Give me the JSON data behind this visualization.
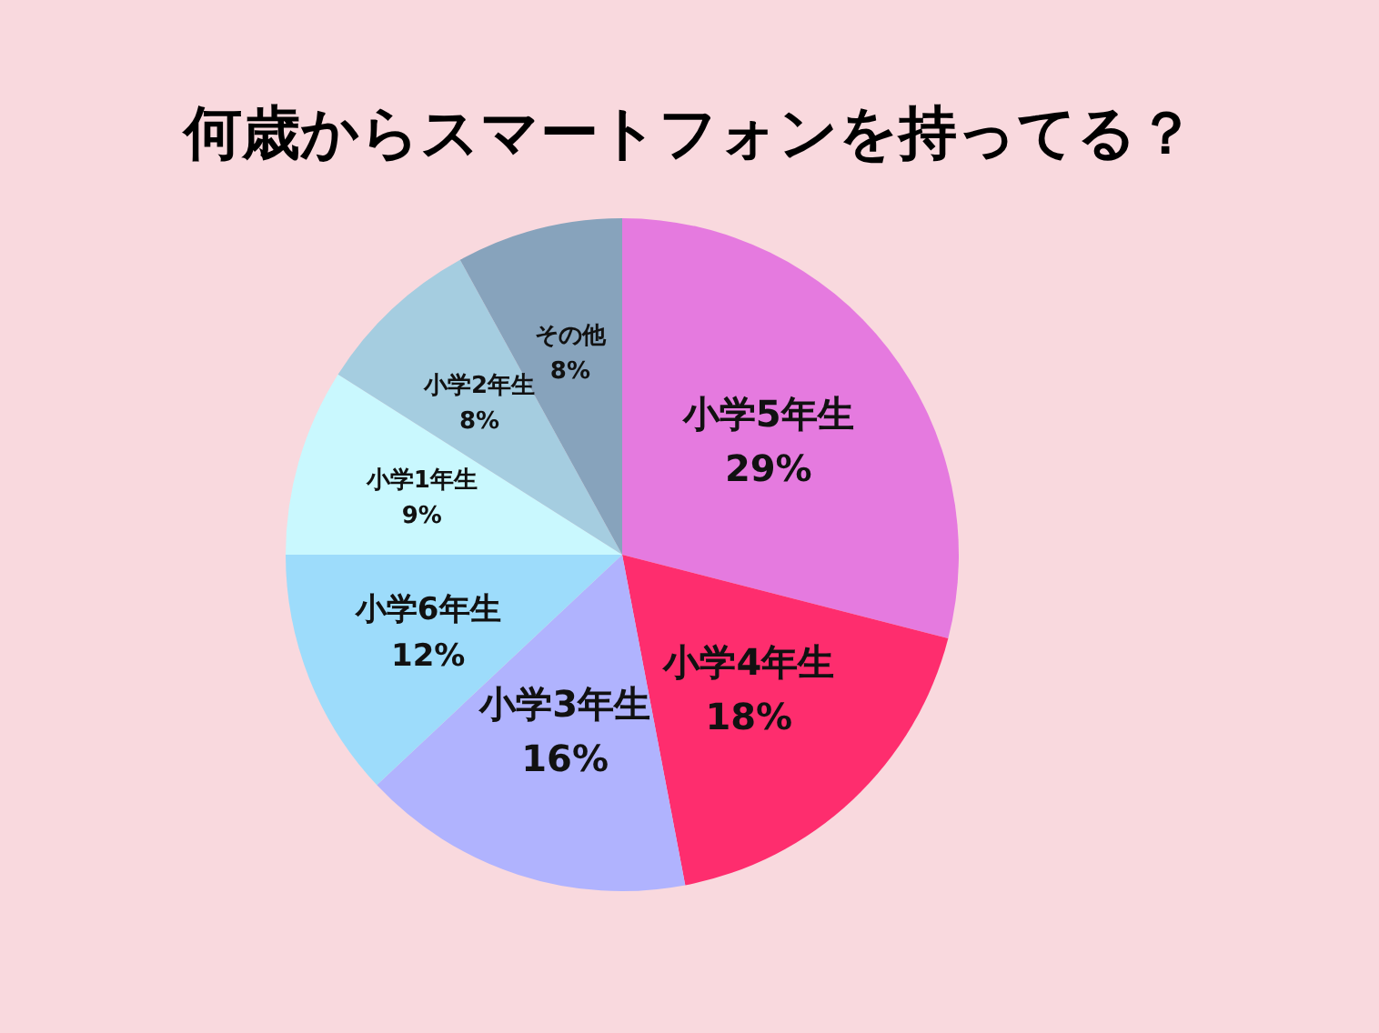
{
  "chart_data": {
    "type": "pie",
    "title": "何歳からスマートフォンを持ってる？",
    "categories": [
      "小学5年生",
      "小学4年生",
      "小学3年生",
      "小学6年生",
      "小学1年生",
      "小学2年生",
      "その他"
    ],
    "values": [
      29,
      18,
      16,
      12,
      9,
      8,
      8
    ],
    "colors": [
      "#e57adf",
      "#fe2d6e",
      "#b0b3fe",
      "#9ddcfb",
      "#c9f8fe",
      "#a5cde0",
      "#87a3bc"
    ],
    "value_labels": [
      "29%",
      "18%",
      "16%",
      "12%",
      "9%",
      "8%",
      "8%"
    ]
  }
}
